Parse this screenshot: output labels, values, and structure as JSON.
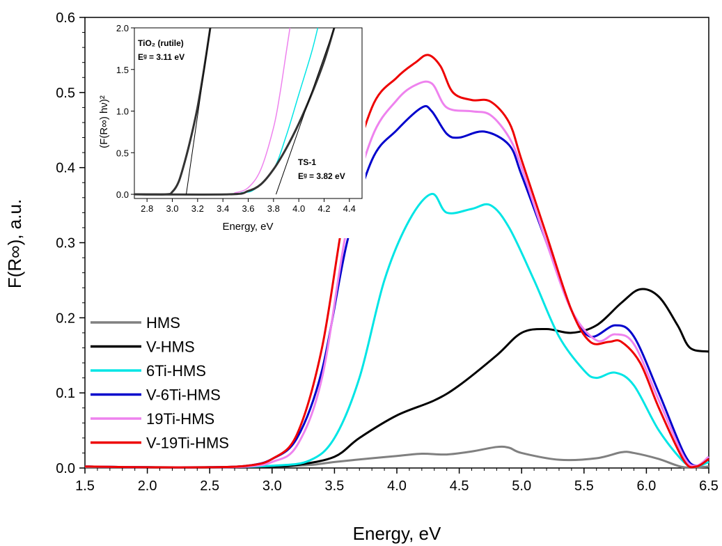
{
  "chart_data": [
    {
      "type": "line",
      "xlabel": "Energy, eV",
      "ylabel": "F(R∞), a.u.",
      "xlim": [
        1.5,
        6.5
      ],
      "ylim": [
        0.0,
        0.6
      ],
      "xticks": [
        "1.5",
        "2.0",
        "2.5",
        "3.0",
        "3.5",
        "4.0",
        "4.5",
        "5.0",
        "5.5",
        "6.0",
        "6.5"
      ],
      "yticks": [
        "0.0",
        "0.1",
        "0.2",
        "0.3",
        "0.4",
        "0.5",
        "0.6"
      ],
      "legend_position": "middle-left",
      "grid": false,
      "series": [
        {
          "name": "HMS",
          "color": "#808080",
          "points": [
            [
              1.5,
              0.001
            ],
            [
              2.0,
              0.001
            ],
            [
              2.5,
              0.001
            ],
            [
              3.0,
              0.002
            ],
            [
              3.3,
              0.004
            ],
            [
              3.5,
              0.008
            ],
            [
              3.8,
              0.013
            ],
            [
              4.0,
              0.016
            ],
            [
              4.2,
              0.019
            ],
            [
              4.4,
              0.018
            ],
            [
              4.6,
              0.022
            ],
            [
              4.8,
              0.028
            ],
            [
              4.9,
              0.027
            ],
            [
              5.0,
              0.02
            ],
            [
              5.3,
              0.011
            ],
            [
              5.6,
              0.013
            ],
            [
              5.8,
              0.021
            ],
            [
              5.9,
              0.02
            ],
            [
              6.1,
              0.012
            ],
            [
              6.3,
              0.001
            ],
            [
              6.5,
              0.002
            ]
          ]
        },
        {
          "name": "V-HMS",
          "color": "#000000",
          "points": [
            [
              1.5,
              0.002
            ],
            [
              2.0,
              0.001
            ],
            [
              2.5,
              0.001
            ],
            [
              3.0,
              0.002
            ],
            [
              3.2,
              0.004
            ],
            [
              3.5,
              0.015
            ],
            [
              3.7,
              0.04
            ],
            [
              4.0,
              0.07
            ],
            [
              4.3,
              0.09
            ],
            [
              4.5,
              0.11
            ],
            [
              4.8,
              0.15
            ],
            [
              5.0,
              0.18
            ],
            [
              5.2,
              0.185
            ],
            [
              5.4,
              0.18
            ],
            [
              5.6,
              0.19
            ],
            [
              5.8,
              0.22
            ],
            [
              5.95,
              0.238
            ],
            [
              6.1,
              0.228
            ],
            [
              6.25,
              0.19
            ],
            [
              6.35,
              0.16
            ],
            [
              6.5,
              0.155
            ]
          ]
        },
        {
          "name": "6Ti-HMS",
          "color": "#00E5E5",
          "points": [
            [
              1.5,
              0.002
            ],
            [
              2.0,
              0.001
            ],
            [
              2.5,
              0.001
            ],
            [
              3.0,
              0.003
            ],
            [
              3.3,
              0.01
            ],
            [
              3.5,
              0.04
            ],
            [
              3.7,
              0.12
            ],
            [
              3.9,
              0.25
            ],
            [
              4.1,
              0.33
            ],
            [
              4.28,
              0.365
            ],
            [
              4.4,
              0.34
            ],
            [
              4.6,
              0.345
            ],
            [
              4.75,
              0.35
            ],
            [
              4.9,
              0.32
            ],
            [
              5.1,
              0.25
            ],
            [
              5.3,
              0.175
            ],
            [
              5.5,
              0.13
            ],
            [
              5.6,
              0.12
            ],
            [
              5.75,
              0.127
            ],
            [
              5.9,
              0.11
            ],
            [
              6.1,
              0.05
            ],
            [
              6.3,
              0.008
            ],
            [
              6.4,
              0.002
            ],
            [
              6.5,
              0.008
            ]
          ]
        },
        {
          "name": "V-6Ti-HMS",
          "color": "#0000CC",
          "points": [
            [
              1.5,
              0.002
            ],
            [
              2.0,
              0.001
            ],
            [
              2.5,
              0.001
            ],
            [
              2.8,
              0.003
            ],
            [
              3.0,
              0.012
            ],
            [
              3.2,
              0.04
            ],
            [
              3.4,
              0.13
            ],
            [
              3.6,
              0.3
            ],
            [
              3.8,
              0.41
            ],
            [
              4.0,
              0.45
            ],
            [
              4.2,
              0.48
            ],
            [
              4.28,
              0.475
            ],
            [
              4.4,
              0.445
            ],
            [
              4.5,
              0.44
            ],
            [
              4.7,
              0.448
            ],
            [
              4.9,
              0.43
            ],
            [
              5.0,
              0.39
            ],
            [
              5.2,
              0.3
            ],
            [
              5.4,
              0.21
            ],
            [
              5.55,
              0.175
            ],
            [
              5.75,
              0.19
            ],
            [
              5.9,
              0.175
            ],
            [
              6.1,
              0.1
            ],
            [
              6.3,
              0.02
            ],
            [
              6.4,
              0.003
            ],
            [
              6.5,
              0.015
            ]
          ]
        },
        {
          "name": "19Ti-HMS",
          "color": "#EE82EE",
          "points": [
            [
              1.5,
              0.002
            ],
            [
              2.0,
              0.001
            ],
            [
              2.5,
              0.001
            ],
            [
              2.8,
              0.002
            ],
            [
              3.0,
              0.008
            ],
            [
              3.2,
              0.03
            ],
            [
              3.4,
              0.12
            ],
            [
              3.6,
              0.32
            ],
            [
              3.8,
              0.44
            ],
            [
              4.0,
              0.49
            ],
            [
              4.15,
              0.51
            ],
            [
              4.28,
              0.512
            ],
            [
              4.4,
              0.48
            ],
            [
              4.6,
              0.475
            ],
            [
              4.75,
              0.47
            ],
            [
              4.9,
              0.44
            ],
            [
              5.0,
              0.4
            ],
            [
              5.2,
              0.3
            ],
            [
              5.4,
              0.21
            ],
            [
              5.6,
              0.17
            ],
            [
              5.75,
              0.178
            ],
            [
              5.9,
              0.165
            ],
            [
              6.1,
              0.09
            ],
            [
              6.3,
              0.015
            ],
            [
              6.4,
              0.003
            ],
            [
              6.5,
              0.015
            ]
          ]
        },
        {
          "name": "V-19Ti-HMS",
          "color": "#EE0000",
          "points": [
            [
              1.5,
              0.002
            ],
            [
              2.0,
              0.001
            ],
            [
              2.5,
              0.001
            ],
            [
              2.8,
              0.003
            ],
            [
              3.0,
              0.012
            ],
            [
              3.2,
              0.045
            ],
            [
              3.4,
              0.16
            ],
            [
              3.6,
              0.36
            ],
            [
              3.8,
              0.48
            ],
            [
              4.0,
              0.52
            ],
            [
              4.15,
              0.54
            ],
            [
              4.25,
              0.55
            ],
            [
              4.35,
              0.535
            ],
            [
              4.45,
              0.5
            ],
            [
              4.6,
              0.49
            ],
            [
              4.75,
              0.488
            ],
            [
              4.9,
              0.46
            ],
            [
              5.0,
              0.41
            ],
            [
              5.2,
              0.31
            ],
            [
              5.4,
              0.21
            ],
            [
              5.55,
              0.168
            ],
            [
              5.7,
              0.168
            ],
            [
              5.8,
              0.168
            ],
            [
              5.95,
              0.14
            ],
            [
              6.1,
              0.08
            ],
            [
              6.3,
              0.01
            ],
            [
              6.4,
              0.002
            ],
            [
              6.5,
              0.012
            ]
          ]
        }
      ]
    },
    {
      "type": "line",
      "xlabel": "Energy, eV",
      "ylabel": "(F(R∞) hν)²",
      "xlim": [
        2.7,
        4.5
      ],
      "ylim": [
        -0.05,
        2.0
      ],
      "xticks": [
        "2.8",
        "3.0",
        "3.2",
        "3.4",
        "3.6",
        "3.8",
        "4.0",
        "4.2",
        "4.4"
      ],
      "yticks": [
        "0.0",
        "0.5",
        "1.0",
        "1.5",
        "2.0"
      ],
      "grid": false,
      "annotations": [
        {
          "line1": "TiO₂ (rutile)",
          "line2": "Eᵍ = 3.11 eV"
        },
        {
          "line1": "TS-1",
          "line2": "Eᵍ = 3.82 eV"
        }
      ],
      "series": [
        {
          "color": "#333333",
          "points": [
            [
              2.7,
              0.0
            ],
            [
              2.95,
              0.0
            ],
            [
              3.0,
              0.03
            ],
            [
              3.05,
              0.15
            ],
            [
              3.1,
              0.4
            ],
            [
              3.15,
              0.7
            ],
            [
              3.2,
              1.05
            ],
            [
              3.25,
              1.5
            ],
            [
              3.3,
              2.0
            ]
          ]
        },
        {
          "color": "#EE82EE",
          "points": [
            [
              2.7,
              0.0
            ],
            [
              3.4,
              0.0
            ],
            [
              3.5,
              0.02
            ],
            [
              3.6,
              0.08
            ],
            [
              3.7,
              0.3
            ],
            [
              3.8,
              0.8
            ],
            [
              3.85,
              1.2
            ],
            [
              3.9,
              1.7
            ],
            [
              3.93,
              2.0
            ]
          ]
        },
        {
          "color": "#00E5E5",
          "points": [
            [
              2.7,
              0.0
            ],
            [
              3.45,
              0.0
            ],
            [
              3.55,
              0.02
            ],
            [
              3.65,
              0.06
            ],
            [
              3.8,
              0.3
            ],
            [
              3.9,
              0.7
            ],
            [
              4.0,
              1.2
            ],
            [
              4.1,
              1.7
            ],
            [
              4.15,
              2.0
            ]
          ]
        },
        {
          "color": "#333333",
          "points": [
            [
              2.7,
              0.0
            ],
            [
              3.45,
              0.0
            ],
            [
              3.6,
              0.04
            ],
            [
              3.7,
              0.12
            ],
            [
              3.8,
              0.3
            ],
            [
              3.9,
              0.55
            ],
            [
              4.0,
              0.85
            ],
            [
              4.1,
              1.2
            ],
            [
              4.2,
              1.6
            ],
            [
              4.28,
              2.0
            ]
          ]
        }
      ],
      "tangents": [
        {
          "points": [
            [
              3.11,
              0.0
            ],
            [
              3.3,
              2.0
            ]
          ]
        },
        {
          "points": [
            [
              3.82,
              0.0
            ],
            [
              4.28,
              2.0
            ]
          ]
        }
      ]
    }
  ]
}
